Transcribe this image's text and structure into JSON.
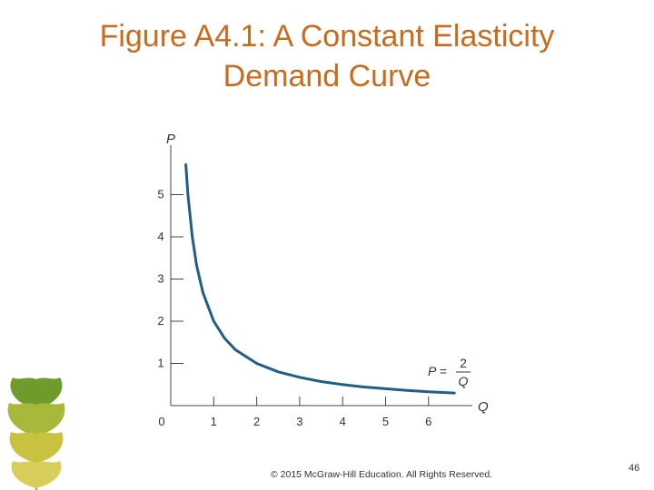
{
  "slide": {
    "title_line1": "Figure A4.1: A Constant Elasticity",
    "title_line2": "Demand Curve",
    "footer": "© 2015 McGraw-Hill Education. All Rights Reserved.",
    "page_number": "46",
    "title_color": "#cc6a1c"
  },
  "chart_data": {
    "type": "line",
    "xlabel": "Q",
    "ylabel": "P",
    "origin_label": "0",
    "x_ticks": [
      "1",
      "2",
      "3",
      "4",
      "5",
      "6"
    ],
    "y_ticks": [
      "1",
      "2",
      "3",
      "4",
      "5"
    ],
    "xlim": [
      0,
      7
    ],
    "ylim": [
      0,
      6
    ],
    "grid": false,
    "series": [
      {
        "equation": "P = 2/Q",
        "x": [
          0.35,
          0.4,
          0.5,
          0.6,
          0.75,
          1,
          1.25,
          1.5,
          2,
          2.5,
          3,
          3.5,
          4,
          4.5,
          5,
          5.5,
          6,
          6.6
        ],
        "y": [
          5.71,
          5.0,
          4.0,
          3.33,
          2.67,
          2.0,
          1.6,
          1.33,
          1.0,
          0.8,
          0.67,
          0.57,
          0.5,
          0.44,
          0.4,
          0.36,
          0.33,
          0.3
        ],
        "color": "#1f5f85"
      }
    ],
    "annotation": {
      "lhs": "P =",
      "numerator": "2",
      "denominator": "Q"
    }
  }
}
